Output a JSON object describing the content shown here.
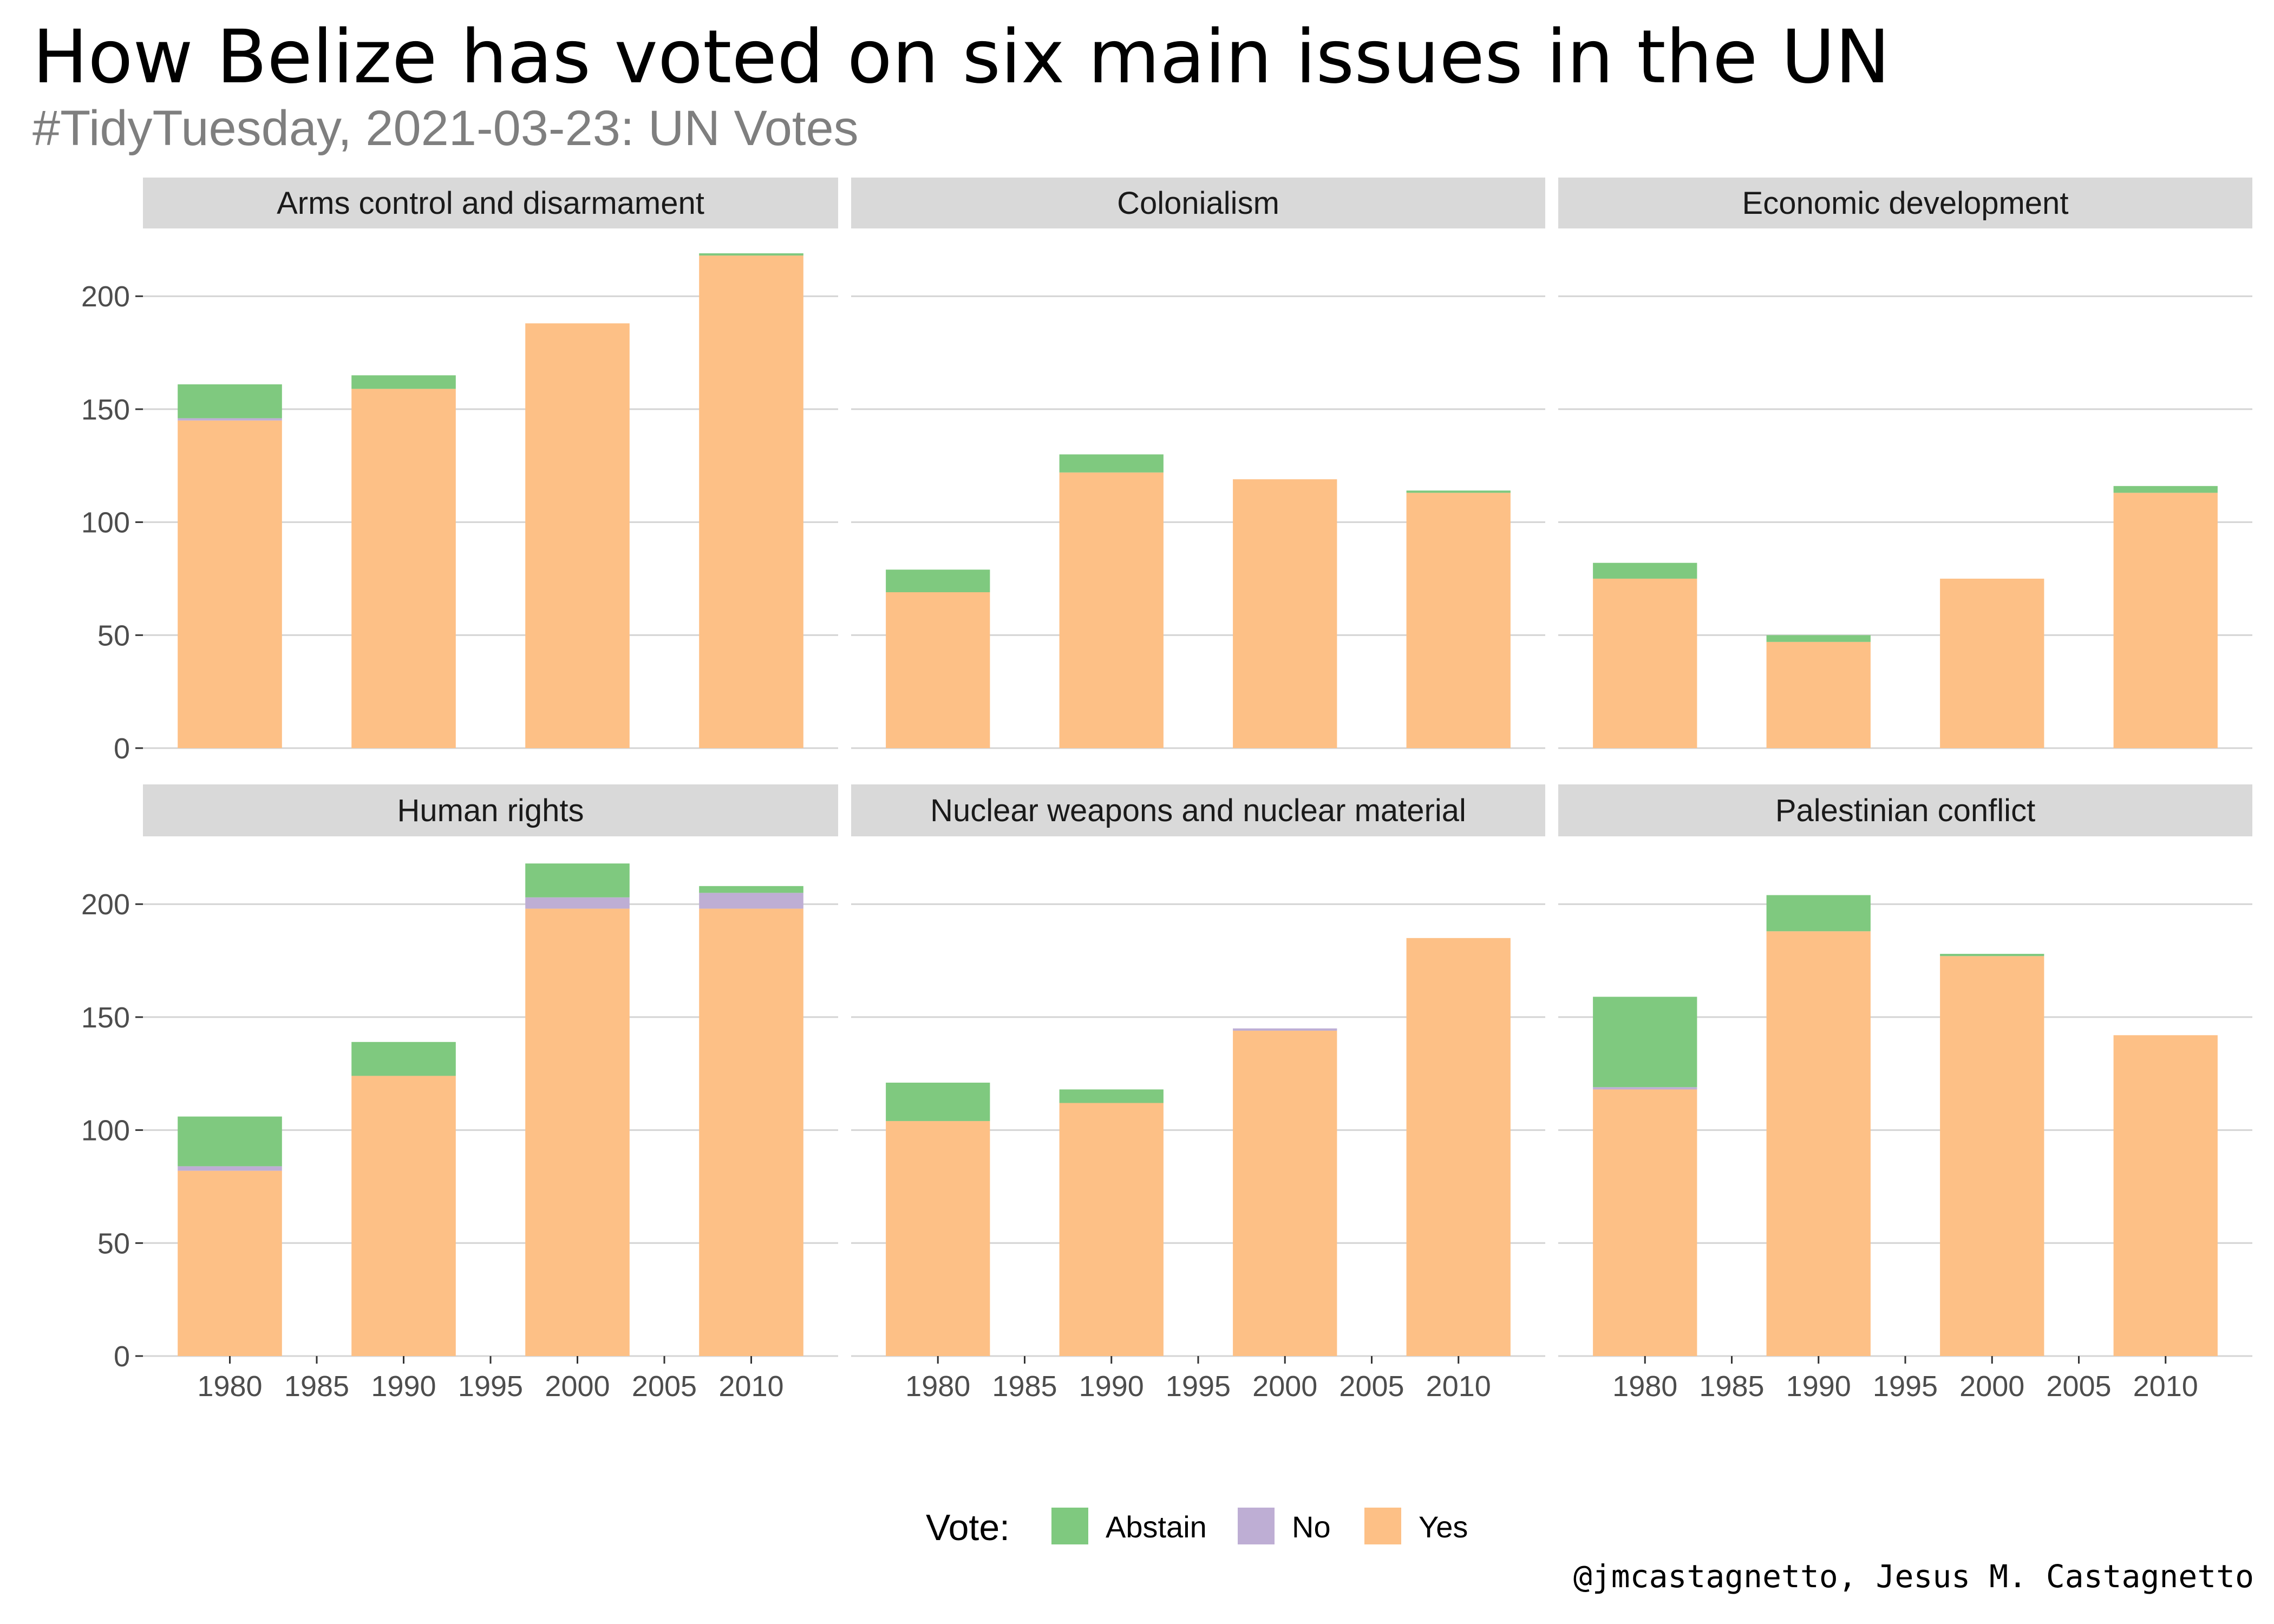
{
  "title": "How Belize has voted on six main issues in the UN",
  "subtitle": "#TidyTuesday, 2021-03-23: UN Votes",
  "caption": "@jmcastagnetto, Jesus M. Castagnetto",
  "chart_data": {
    "type": "bar",
    "stacked": true,
    "facet_layout": "2 rows x 3 columns",
    "x_label": "",
    "y_label": "",
    "x_ticks": [
      1980,
      1985,
      1990,
      1995,
      2000,
      2005,
      2010
    ],
    "y_ticks": [
      0,
      50,
      100,
      150,
      200
    ],
    "ylim": [
      0,
      230
    ],
    "xlim": [
      1975,
      2015
    ],
    "grid": true,
    "legend": {
      "title": "Vote:",
      "position": "bottom",
      "entries": [
        {
          "name": "Abstain",
          "color": "#7fc97f"
        },
        {
          "name": "No",
          "color": "#beaed4"
        },
        {
          "name": "Yes",
          "color": "#fdc086"
        }
      ]
    },
    "stack_order": [
      "Yes",
      "No",
      "Abstain"
    ],
    "decades": [
      1980,
      1990,
      2000,
      2010
    ],
    "panels": [
      {
        "name": "Arms control and disarmament",
        "values": {
          "Yes": [
            145,
            159,
            188,
            218
          ],
          "No": [
            1,
            0,
            0,
            0
          ],
          "Abstain": [
            15,
            6,
            0,
            1
          ]
        }
      },
      {
        "name": "Colonialism",
        "values": {
          "Yes": [
            69,
            122,
            119,
            113
          ],
          "No": [
            0,
            0,
            0,
            0
          ],
          "Abstain": [
            10,
            8,
            0,
            1
          ]
        }
      },
      {
        "name": "Economic development",
        "values": {
          "Yes": [
            75,
            47,
            75,
            113
          ],
          "No": [
            0,
            0,
            0,
            0
          ],
          "Abstain": [
            7,
            3,
            0,
            3
          ]
        }
      },
      {
        "name": "Human rights",
        "values": {
          "Yes": [
            82,
            124,
            198,
            198
          ],
          "No": [
            2,
            0,
            5,
            7
          ],
          "Abstain": [
            22,
            15,
            15,
            3
          ]
        }
      },
      {
        "name": "Nuclear weapons and nuclear material",
        "values": {
          "Yes": [
            104,
            112,
            144,
            185
          ],
          "No": [
            0,
            0,
            1,
            0
          ],
          "Abstain": [
            17,
            6,
            0,
            0
          ]
        }
      },
      {
        "name": "Palestinian conflict",
        "values": {
          "Yes": [
            118,
            188,
            177,
            142
          ],
          "No": [
            1,
            0,
            0,
            0
          ],
          "Abstain": [
            40,
            16,
            1,
            0
          ]
        }
      }
    ]
  }
}
